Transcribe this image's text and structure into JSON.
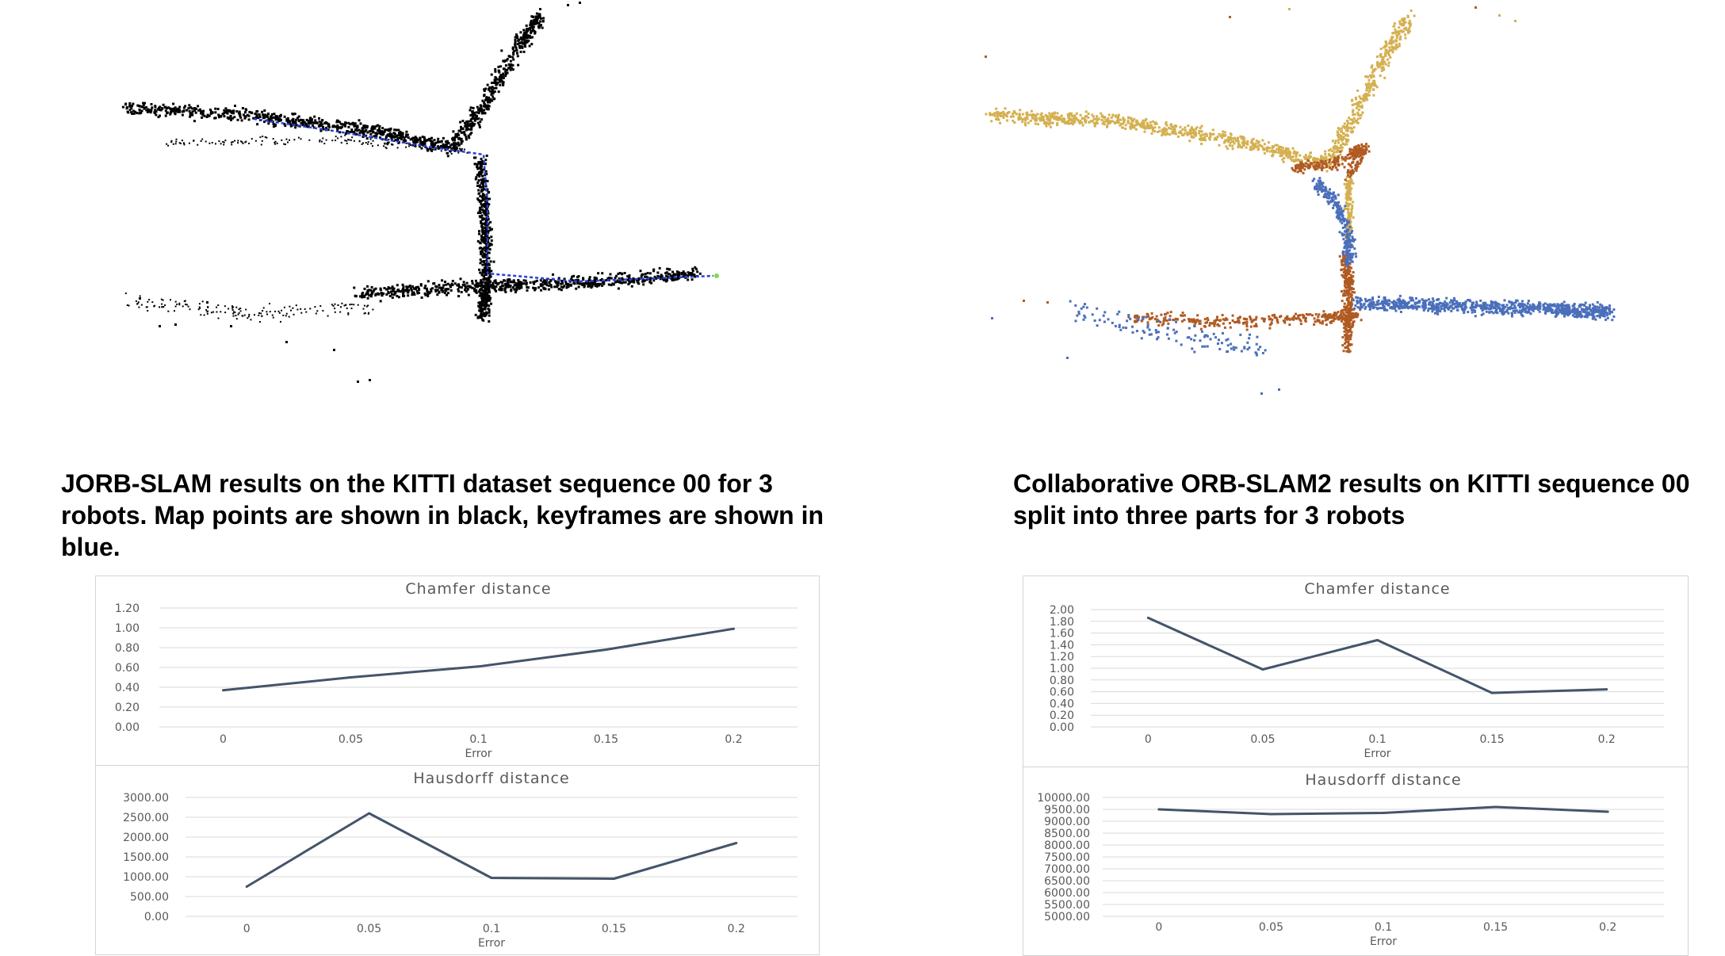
{
  "captions": {
    "left": "JORB-SLAM results on the KITTI dataset sequence 00 for 3 robots. Map points are shown in black, keyframes are shown in blue.",
    "right": "Collaborative ORB-SLAM2 results on KITTI sequence 00 split into three parts for 3 robots"
  },
  "colors": {
    "map_points": "#000000",
    "keyframes": "#2a3fd6",
    "robot_1": "#d4b050",
    "robot_2": "#b05a22",
    "robot_3": "#4a6fbb",
    "series_line": "#44546a",
    "grid": "#d9d9d9"
  },
  "chart_data": [
    {
      "id": "jorb-chamfer",
      "type": "line",
      "title": "Chamfer distance",
      "xlabel": "Error",
      "ylabel": "",
      "categories": [
        "0",
        "0.05",
        "0.1",
        "0.15",
        "0.2"
      ],
      "series": [
        {
          "values": [
            0.37,
            0.5,
            0.61,
            0.78,
            0.99
          ]
        }
      ],
      "ylim": [
        0,
        1.2
      ],
      "yticks": [
        "0.00",
        "0.20",
        "0.40",
        "0.60",
        "0.80",
        "1.00",
        "1.20"
      ],
      "grid": true,
      "legend": "none"
    },
    {
      "id": "jorb-hausdorff",
      "type": "line",
      "title": "Hausdorff distance",
      "xlabel": "Error",
      "ylabel": "",
      "categories": [
        "0",
        "0.05",
        "0.1",
        "0.15",
        "0.2"
      ],
      "series": [
        {
          "values": [
            750,
            2600,
            970,
            950,
            1850
          ]
        }
      ],
      "ylim": [
        0,
        3000
      ],
      "yticks": [
        "0.00",
        "500.00",
        "1000.00",
        "1500.00",
        "2000.00",
        "2500.00",
        "3000.00"
      ],
      "grid": true,
      "legend": "none"
    },
    {
      "id": "ccm-chamfer",
      "type": "line",
      "title": "Chamfer distance",
      "xlabel": "Error",
      "ylabel": "",
      "categories": [
        "0",
        "0.05",
        "0.1",
        "0.15",
        "0.2"
      ],
      "series": [
        {
          "values": [
            1.86,
            0.98,
            1.48,
            0.58,
            0.64
          ]
        }
      ],
      "ylim": [
        0,
        2.0
      ],
      "yticks": [
        "0.00",
        "0.20",
        "0.40",
        "0.60",
        "0.80",
        "1.00",
        "1.20",
        "1.40",
        "1.60",
        "1.80",
        "2.00"
      ],
      "grid": true,
      "legend": "none"
    },
    {
      "id": "ccm-hausdorff",
      "type": "line",
      "title": "Hausdorff distance",
      "xlabel": "Error",
      "ylabel": "",
      "categories": [
        "0",
        "0.05",
        "0.1",
        "0.15",
        "0.2"
      ],
      "series": [
        {
          "values": [
            9500,
            9300,
            9350,
            9600,
            9400
          ]
        }
      ],
      "ylim": [
        5000,
        10000
      ],
      "yticks": [
        "5000.00",
        "5500.00",
        "6000.00",
        "6500.00",
        "7000.00",
        "7500.00",
        "8000.00",
        "8500.00",
        "9000.00",
        "9500.00",
        "10000.00"
      ],
      "grid": true,
      "legend": "none"
    }
  ]
}
